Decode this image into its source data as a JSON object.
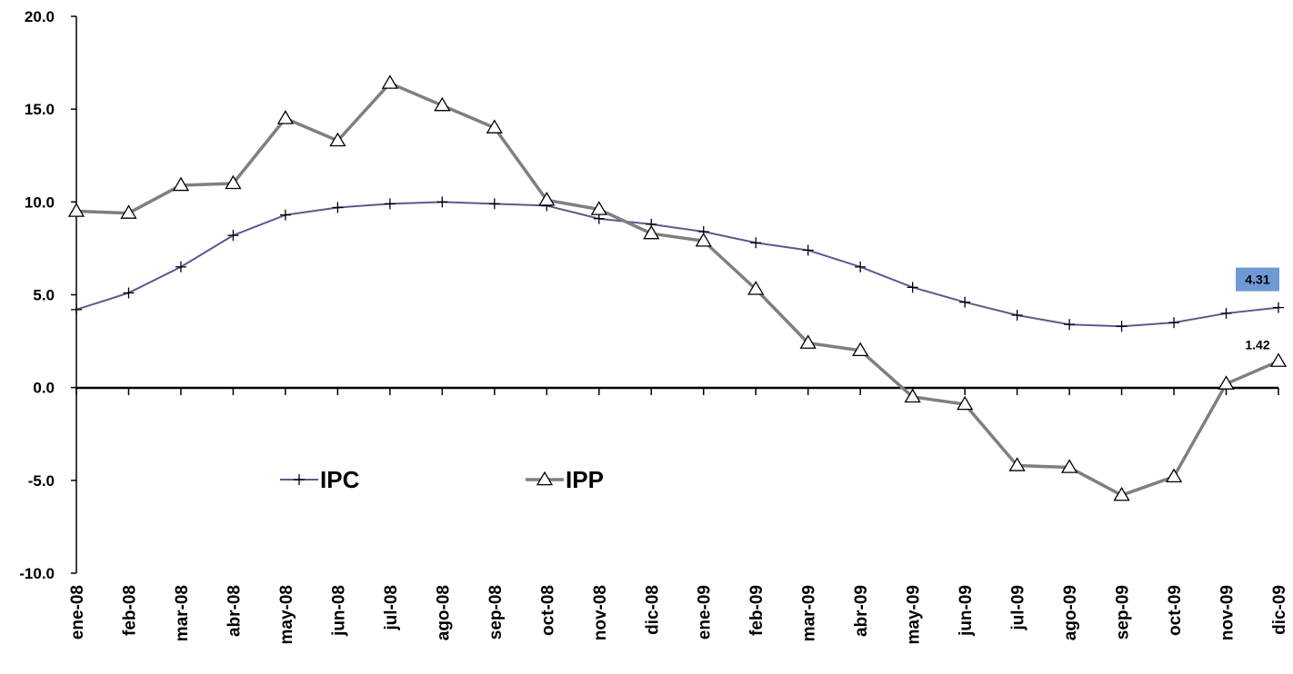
{
  "chart_data": {
    "type": "line",
    "categories": [
      "ene-08",
      "feb-08",
      "mar-08",
      "abr-08",
      "may-08",
      "jun-08",
      "jul-08",
      "ago-08",
      "sep-08",
      "oct-08",
      "nov-08",
      "dic-08",
      "ene-09",
      "feb-09",
      "mar-09",
      "abr-09",
      "may-09",
      "jun-09",
      "jul-09",
      "ago-09",
      "sep-09",
      "oct-09",
      "nov-09",
      "dic-09"
    ],
    "series": [
      {
        "name": "IPC",
        "color": "#5a5a8f",
        "marker": "plus",
        "values": [
          4.2,
          5.1,
          6.5,
          8.2,
          9.3,
          9.7,
          9.9,
          10.0,
          9.9,
          9.8,
          9.1,
          8.8,
          8.4,
          7.8,
          7.4,
          6.5,
          5.4,
          4.6,
          3.9,
          3.4,
          3.3,
          3.5,
          4.0,
          4.31
        ]
      },
      {
        "name": "IPP",
        "color": "#7f7f7f",
        "marker": "triangle",
        "values": [
          9.5,
          9.4,
          10.9,
          11.0,
          14.5,
          13.3,
          16.4,
          15.2,
          14.0,
          10.1,
          9.6,
          8.3,
          7.9,
          5.3,
          2.4,
          2.0,
          -0.5,
          -0.9,
          -4.2,
          -4.3,
          -5.8,
          -4.8,
          0.2,
          1.42
        ]
      }
    ],
    "yticks": [
      "20.0",
      "15.0",
      "10.0",
      "5.0",
      "0.0",
      "-5.0",
      "-10.0"
    ],
    "ylim": [
      -10,
      20
    ],
    "data_labels": [
      {
        "series": "IPC",
        "index": 23,
        "text": "4.31",
        "box_color": "#6e99d4"
      },
      {
        "series": "IPP",
        "index": 23,
        "text": "1.42"
      }
    ],
    "legend": {
      "position": "bottom-left",
      "items": [
        "IPC",
        "IPP"
      ]
    },
    "grid": false,
    "title": "",
    "xlabel": "",
    "ylabel": ""
  }
}
